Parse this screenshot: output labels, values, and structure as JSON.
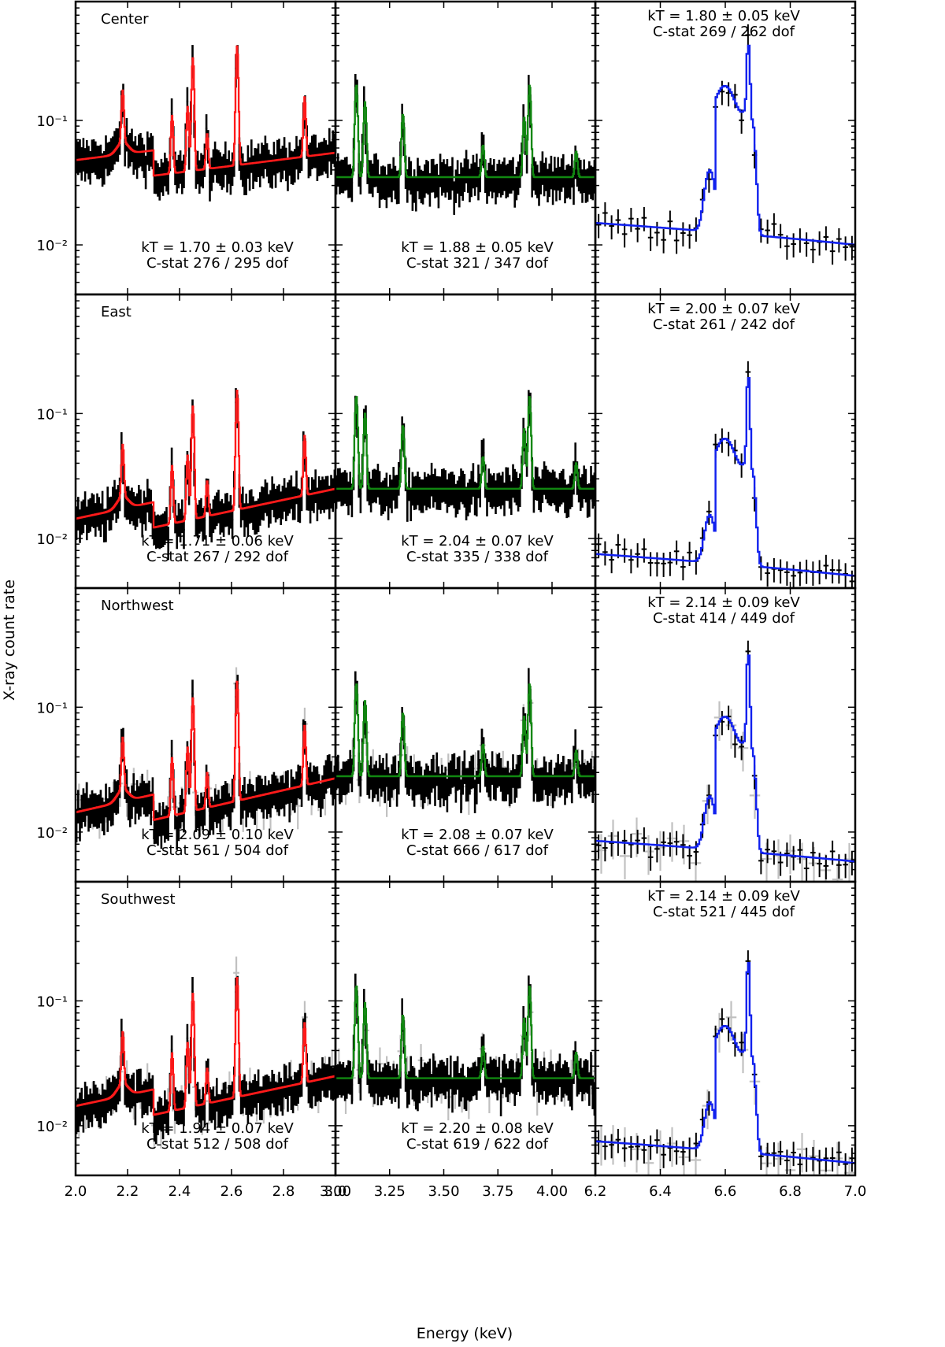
{
  "chart_data": {
    "type": "line",
    "description_layout": "4x3 grid of log-scale X-ray spectra panels",
    "ylabel": "X-ray count rate",
    "xlabel": "Energy (keV)",
    "y_scale": "log",
    "ylim": [
      0.004,
      0.9
    ],
    "y_major_ticks": [
      0.01,
      0.1
    ],
    "y_tick_labels": [
      "10⁻²",
      "10⁻¹"
    ],
    "columns": [
      {
        "xlim": [
          2.0,
          3.0
        ],
        "model_color": "#ff1a1a",
        "ticks": [
          2.0,
          2.2,
          2.4,
          2.6,
          2.8,
          3.0
        ],
        "tick_labels": [
          "2.0",
          "2.2",
          "2.4",
          "2.6",
          "2.8",
          "3.0"
        ],
        "lines": [
          {
            "e": 2.18,
            "a": 1.6
          },
          {
            "e": 2.37,
            "a": 1.9
          },
          {
            "e": 2.43,
            "a": 2.3
          },
          {
            "e": 2.45,
            "a": 7.0
          },
          {
            "e": 2.505,
            "a": 0.9
          },
          {
            "e": 2.62,
            "a": 8.0
          },
          {
            "e": 2.88,
            "a": 2.0
          }
        ]
      },
      {
        "xlim": [
          3.0,
          4.2
        ],
        "model_color": "#118811",
        "ticks": [
          3.0,
          3.25,
          3.5,
          3.75,
          4.0
        ],
        "tick_labels": [
          "3.00",
          "3.25",
          "3.50",
          "3.75",
          "4.00"
        ],
        "lines": [
          {
            "e": 3.095,
            "a": 4.5
          },
          {
            "e": 3.135,
            "a": 3.0
          },
          {
            "e": 3.31,
            "a": 2.2
          },
          {
            "e": 3.68,
            "a": 0.8
          },
          {
            "e": 3.87,
            "a": 2.0
          },
          {
            "e": 3.895,
            "a": 4.5
          },
          {
            "e": 4.11,
            "a": 0.6
          }
        ]
      },
      {
        "xlim": [
          6.2,
          7.0
        ],
        "model_color": "#1020ee",
        "ticks": [
          6.2,
          6.4,
          6.6,
          6.8,
          7.0
        ],
        "tick_labels": [
          "6.2",
          "6.4",
          "6.6",
          "6.8",
          "7.0"
        ],
        "lines": []
      }
    ],
    "rows": [
      {
        "region": "Center",
        "cont": [
          0.03,
          0.055,
          0.035,
          0.015
        ],
        "fits": [
          {
            "kT": "kT = 1.70 ± 0.03 keV",
            "cstat": "C-stat 276 / 295 dof",
            "pos": "bottom"
          },
          {
            "kT": "kT = 1.88 ± 0.05 keV",
            "cstat": "C-stat 321 / 347 dof",
            "pos": "bottom"
          },
          {
            "kT": "kT = 1.80 ± 0.05 keV",
            "cstat": "C-stat 269 / 262 dof",
            "pos": "top"
          }
        ],
        "fe": {
          "peak": 0.3,
          "plateau": 0.18,
          "c0": 0.015,
          "c1": 0.01
        }
      },
      {
        "region": "East",
        "cont": [
          0.009,
          0.025,
          0.025,
          0.015
        ],
        "fits": [
          {
            "kT": "kT = 1.71 ± 0.06 keV",
            "cstat": "C-stat 267 / 292 dof",
            "pos": "bottom"
          },
          {
            "kT": "kT = 2.04 ± 0.07 keV",
            "cstat": "C-stat 335 / 338 dof",
            "pos": "bottom"
          },
          {
            "kT": "kT = 2.00 ± 0.07 keV",
            "cstat": "C-stat 261 / 242 dof",
            "pos": "top"
          }
        ],
        "fe": {
          "peak": 0.17,
          "plateau": 0.06,
          "c0": 0.0075,
          "c1": 0.005
        }
      },
      {
        "region": "Northwest",
        "cont": [
          0.009,
          0.027,
          0.028,
          0.015
        ],
        "fits": [
          {
            "kT": "kT = 2.09 ± 0.10 keV",
            "cstat": "C-stat 561 / 504 dof",
            "pos": "bottom"
          },
          {
            "kT": "kT = 2.08 ± 0.07 keV",
            "cstat": "C-stat 666 / 617 dof",
            "pos": "bottom"
          },
          {
            "kT": "kT = 2.14 ± 0.09 keV",
            "cstat": "C-stat 414 / 449 dof",
            "pos": "top"
          }
        ],
        "fe": {
          "peak": 0.23,
          "plateau": 0.08,
          "c0": 0.0085,
          "c1": 0.0058
        }
      },
      {
        "region": "Southwest",
        "cont": [
          0.009,
          0.025,
          0.024,
          0.016
        ],
        "fits": [
          {
            "kT": "kT = 1.94 ± 0.07 keV",
            "cstat": "C-stat 512 / 508 dof",
            "pos": "bottom"
          },
          {
            "kT": "kT = 2.20 ± 0.08 keV",
            "cstat": "C-stat 619 / 622 dof",
            "pos": "bottom"
          },
          {
            "kT": "kT = 2.14 ± 0.09 keV",
            "cstat": "C-stat 521 / 445 dof",
            "pos": "top"
          }
        ],
        "fe": {
          "peak": 0.18,
          "plateau": 0.06,
          "c0": 0.0075,
          "c1": 0.005
        }
      }
    ],
    "series_styles": {
      "data": "#000000",
      "secondary_data": "#c0c0c0"
    }
  }
}
